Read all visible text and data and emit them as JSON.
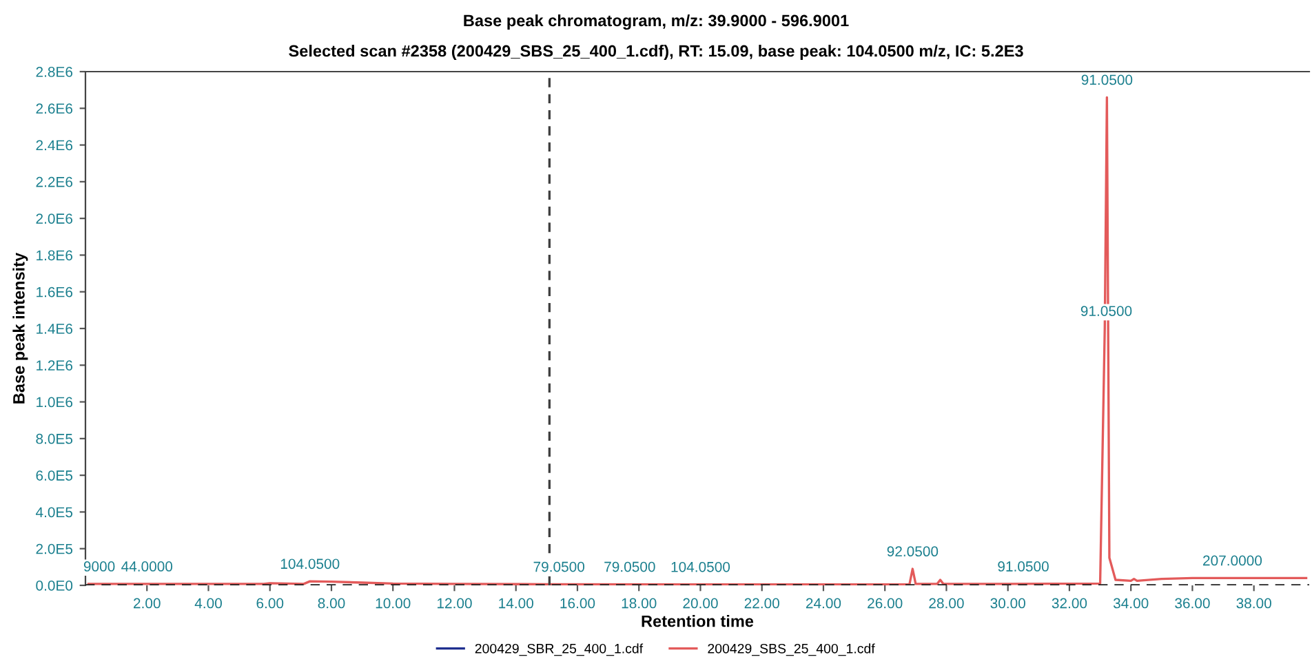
{
  "chart_data": {
    "type": "line",
    "title": "Base peak chromatogram, m/z: 39.9000 - 596.9001",
    "subtitle": "Selected scan #2358 (200429_SBS_25_400_1.cdf), RT: 15.09, base peak: 104.0500 m/z, IC: 5.2E3",
    "xlabel": "Retention time",
    "ylabel": "Base peak intensity",
    "series": [
      {
        "name": "200429_SBR_25_400_1.cdf",
        "color": "#1f2f8f",
        "values": [
          null
        ]
      },
      {
        "name": "200429_SBS_25_400_1.cdf",
        "color": "#e35a5a",
        "x": [
          0.1,
          2,
          4,
          5.8,
          6,
          7.1,
          7.3,
          8,
          9,
          10,
          12,
          15,
          20,
          25,
          26.8,
          26.9,
          27.0,
          27.7,
          27.8,
          27.9,
          30,
          33.0,
          33.15,
          33.22,
          33.3,
          33.5,
          34.0,
          34.1,
          34.2,
          35,
          36,
          38,
          39.7
        ],
        "values": [
          8000,
          8000,
          8000,
          8000,
          12000,
          8000,
          22000,
          20000,
          15000,
          10000,
          8000,
          6000,
          5000,
          5000,
          6000,
          90000,
          8000,
          8000,
          30000,
          8000,
          8000,
          10000,
          1400000,
          2660000,
          150000,
          30000,
          25000,
          35000,
          25000,
          35000,
          40000,
          40000,
          40000
        ]
      }
    ],
    "xlim": [
      0,
      39.8
    ],
    "ylim": [
      0,
      2800000
    ],
    "xticks": [
      {
        "value": 2,
        "label": "2.00"
      },
      {
        "value": 4,
        "label": "4.00"
      },
      {
        "value": 6,
        "label": "6.00"
      },
      {
        "value": 8,
        "label": "8.00"
      },
      {
        "value": 10,
        "label": "10.00"
      },
      {
        "value": 12,
        "label": "12.00"
      },
      {
        "value": 14,
        "label": "14.00"
      },
      {
        "value": 16,
        "label": "16.00"
      },
      {
        "value": 18,
        "label": "18.00"
      },
      {
        "value": 20,
        "label": "20.00"
      },
      {
        "value": 22,
        "label": "22.00"
      },
      {
        "value": 24,
        "label": "24.00"
      },
      {
        "value": 26,
        "label": "26.00"
      },
      {
        "value": 28,
        "label": "28.00"
      },
      {
        "value": 30,
        "label": "30.00"
      },
      {
        "value": 32,
        "label": "32.00"
      },
      {
        "value": 34,
        "label": "34.00"
      },
      {
        "value": 36,
        "label": "36.00"
      },
      {
        "value": 38,
        "label": "38.00"
      }
    ],
    "yticks": [
      {
        "value": 0,
        "label": "0.0E0"
      },
      {
        "value": 200000,
        "label": "2.0E5"
      },
      {
        "value": 400000,
        "label": "4.0E5"
      },
      {
        "value": 600000,
        "label": "6.0E5"
      },
      {
        "value": 800000,
        "label": "8.0E5"
      },
      {
        "value": 1000000,
        "label": "1.0E6"
      },
      {
        "value": 1200000,
        "label": "1.2E6"
      },
      {
        "value": 1400000,
        "label": "1.4E6"
      },
      {
        "value": 1600000,
        "label": "1.6E6"
      },
      {
        "value": 1800000,
        "label": "1.8E6"
      },
      {
        "value": 2000000,
        "label": "2.0E6"
      },
      {
        "value": 2200000,
        "label": "2.2E6"
      },
      {
        "value": 2400000,
        "label": "2.4E6"
      },
      {
        "value": 2600000,
        "label": "2.6E6"
      },
      {
        "value": 2800000,
        "label": "2.8E6"
      }
    ],
    "annotations": [
      {
        "text": "9000",
        "x": 0.45,
        "y": 8000
      },
      {
        "text": "44.0000",
        "x": 2.0,
        "y": 8000
      },
      {
        "text": "104.0500",
        "x": 7.3,
        "y": 22000
      },
      {
        "text": "79.0500",
        "x": 15.4,
        "y": 6000
      },
      {
        "text": "79.0500",
        "x": 17.7,
        "y": 6000
      },
      {
        "text": "104.0500",
        "x": 20.0,
        "y": 5000
      },
      {
        "text": "92.0500",
        "x": 26.9,
        "y": 90000
      },
      {
        "text": "91.0500",
        "x": 30.5,
        "y": 8000
      },
      {
        "text": "91.0500",
        "x": 33.22,
        "y": 2660000
      },
      {
        "text": "91.0500",
        "x": 33.2,
        "y": 1400000
      },
      {
        "text": "207.0000",
        "x": 37.3,
        "y": 40000
      }
    ],
    "ref_lines": [
      {
        "axis": "x",
        "value": 15.09,
        "color": "#404040",
        "line_style": "dashed"
      },
      {
        "axis": "y",
        "value": 0,
        "color": "#202020",
        "line_style": "dashed"
      }
    ],
    "grid": false,
    "legend": "bottom",
    "marker": "none",
    "line_style": "solid"
  }
}
